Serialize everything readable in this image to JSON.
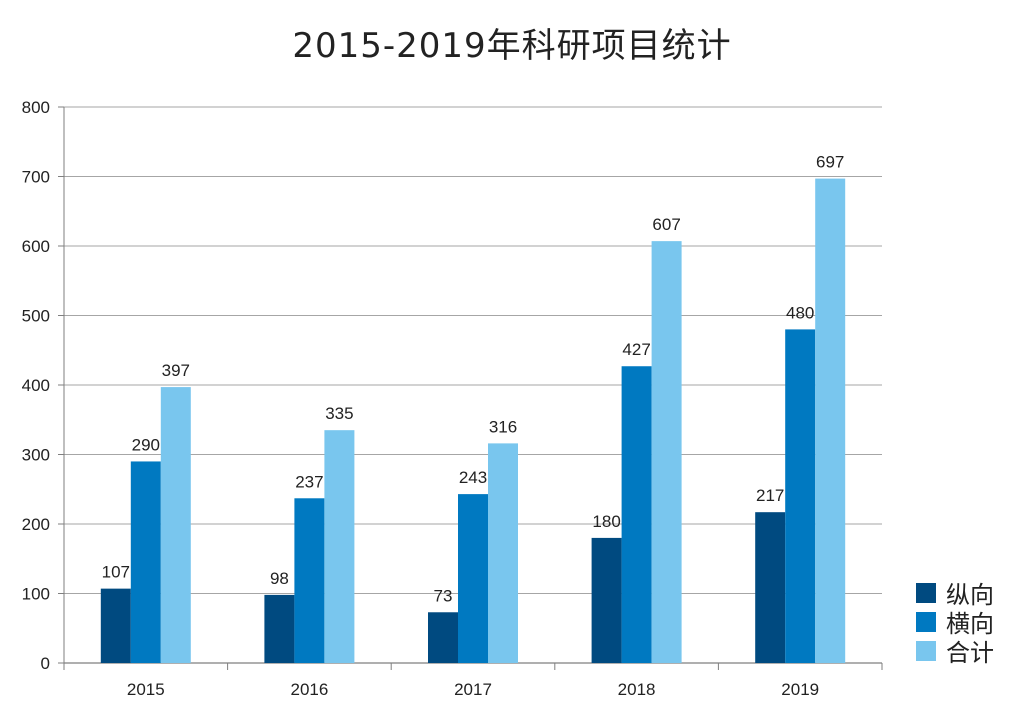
{
  "chart_data": {
    "type": "bar",
    "title": "2015-2019年科研项目统计",
    "xlabel": "",
    "ylabel": "",
    "categories": [
      "2015",
      "2016",
      "2017",
      "2018",
      "2019"
    ],
    "series": [
      {
        "name": "纵向",
        "color": "#004a80",
        "values": [
          107,
          98,
          73,
          180,
          217
        ]
      },
      {
        "name": "横向",
        "color": "#0079c1",
        "values": [
          290,
          237,
          243,
          427,
          480
        ]
      },
      {
        "name": "合计",
        "color": "#79c6ee",
        "values": [
          397,
          335,
          316,
          607,
          697
        ]
      }
    ],
    "ylim": [
      0,
      800
    ],
    "yticks": [
      0,
      100,
      200,
      300,
      400,
      500,
      600,
      700,
      800
    ],
    "grid": true,
    "legend_position": "bottom-right",
    "data_labels": true
  }
}
